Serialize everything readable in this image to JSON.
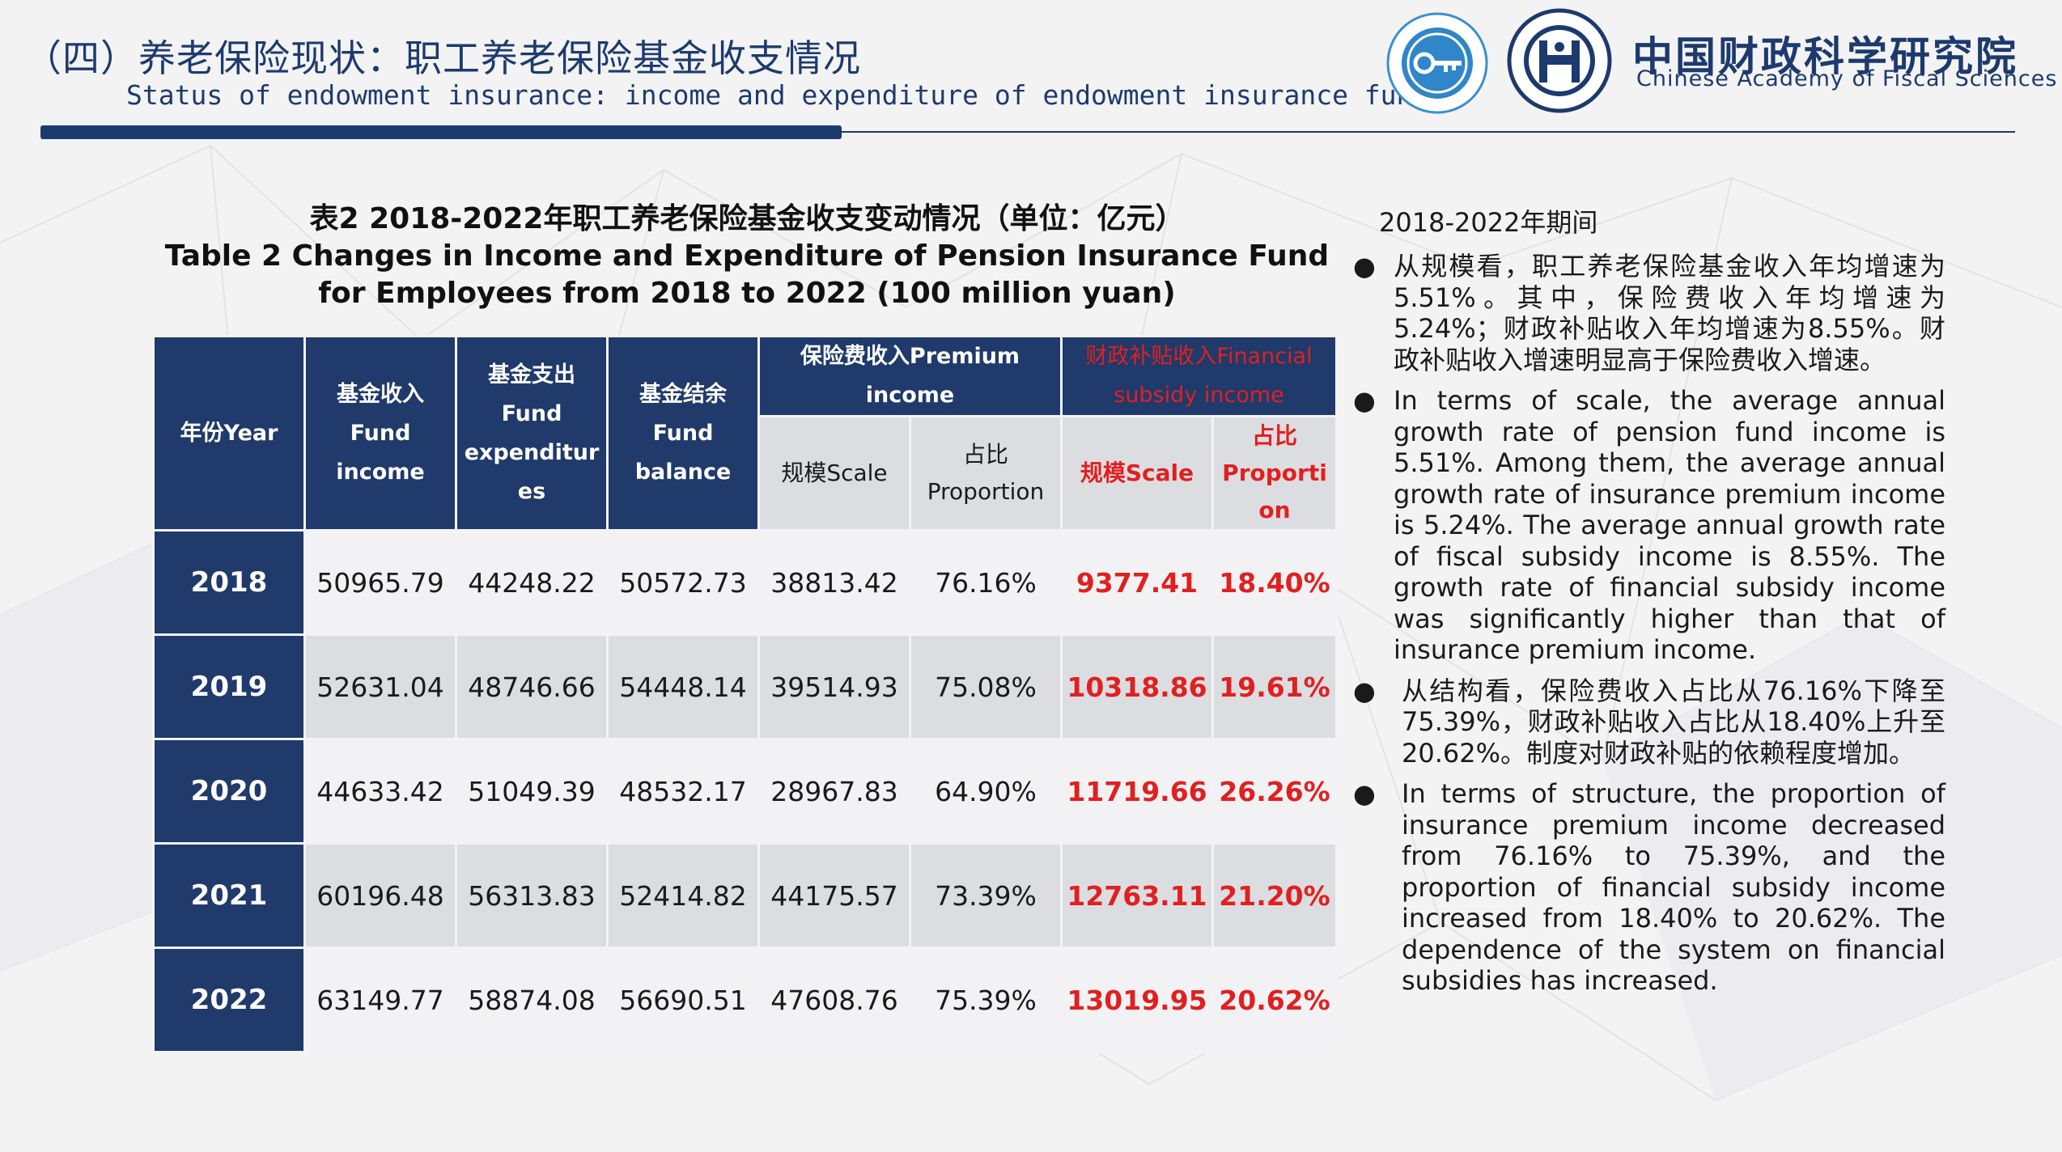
{
  "header": {
    "title_zh": "（四）养老保险现状：职工养老保险基金收支情况",
    "title_en": "Status of endowment insurance: income and expenditure of endowment insurance fund"
  },
  "institution": {
    "name_zh": "中国财政科学研究院",
    "name_en": "Chinese Academy of Fiscal Sciences"
  },
  "colors": {
    "navy": "#1f3a6b",
    "red": "#e02020",
    "light_gray": "#f2f2f4",
    "mid_gray": "#dcdde1"
  },
  "icons": [
    "think-tank-logo-icon",
    "academy-seal-logo-icon"
  ],
  "table": {
    "title_zh": "表2 2018-2022年职工养老保险基金收支变动情况（单位：亿元）",
    "title_en": "Table 2 Changes in Income and Expenditure of Pension Insurance Fund for Employees from 2018 to 2022 (100 million yuan)",
    "headers": {
      "year": "年份Year",
      "fund_income": [
        "基金收入",
        "Fund",
        "income"
      ],
      "fund_expenditure": [
        "基金支出",
        "Fund",
        "expenditur",
        "es"
      ],
      "fund_balance": [
        "基金结余",
        "Fund",
        "balance"
      ],
      "premium_income": [
        "保险费收入Premium",
        "income"
      ],
      "subsidy_income": [
        "财政补贴收入Financial",
        "subsidy income"
      ],
      "premium_scale": "规模Scale",
      "premium_proportion": [
        "占比",
        "Proportion"
      ],
      "subsidy_scale": "规模Scale",
      "subsidy_proportion": [
        "占比",
        "Proporti",
        "on"
      ]
    },
    "rows": [
      {
        "year": "2018",
        "fund_income": "50965.79",
        "fund_expenditure": "44248.22",
        "fund_balance": "50572.73",
        "premium_scale": "38813.42",
        "premium_proportion": "76.16%",
        "subsidy_scale": "9377.41",
        "subsidy_proportion": "18.40%"
      },
      {
        "year": "2019",
        "fund_income": "52631.04",
        "fund_expenditure": "48746.66",
        "fund_balance": "54448.14",
        "premium_scale": "39514.93",
        "premium_proportion": "75.08%",
        "subsidy_scale": "10318.86",
        "subsidy_proportion": "19.61%"
      },
      {
        "year": "2020",
        "fund_income": "44633.42",
        "fund_expenditure": "51049.39",
        "fund_balance": "48532.17",
        "premium_scale": "28967.83",
        "premium_proportion": "64.90%",
        "subsidy_scale": "11719.66",
        "subsidy_proportion": "26.26%"
      },
      {
        "year": "2021",
        "fund_income": "60196.48",
        "fund_expenditure": "56313.83",
        "fund_balance": "52414.82",
        "premium_scale": "44175.57",
        "premium_proportion": "73.39%",
        "subsidy_scale": "12763.11",
        "subsidy_proportion": "21.20%"
      },
      {
        "year": "2022",
        "fund_income": "63149.77",
        "fund_expenditure": "58874.08",
        "fund_balance": "56690.51",
        "premium_scale": "47608.76",
        "premium_proportion": "75.39%",
        "subsidy_scale": "13019.95",
        "subsidy_proportion": "20.62%"
      }
    ]
  },
  "notes": {
    "period": "2018-2022年期间",
    "bullet": "●",
    "items": [
      "从规模看，职工养老保险基金收入年均增速为5.51%。其中，保险费收入年均增速为5.24%；财政补贴收入年均增速为8.55%。财政补贴收入增速明显高于保险费收入增速。",
      "In terms of scale, the average annual growth rate of pension fund income is 5.51%. Among them, the average annual growth rate of insurance premium income is 5.24%. The average annual growth rate of fiscal subsidy income is 8.55%. The growth rate of financial subsidy income was significantly higher than that of insurance premium income.",
      "从结构看，保险费收入占比从76.16%下降至75.39%，财政补贴收入占比从18.40%上升至20.62%。制度对财政补贴的依赖程度增加。",
      "In terms of structure, the proportion of insurance premium income decreased from 76.16% to 75.39%, and the proportion of financial subsidy income increased from 18.40% to 20.62%. The dependence of the system on financial subsidies has increased."
    ]
  }
}
